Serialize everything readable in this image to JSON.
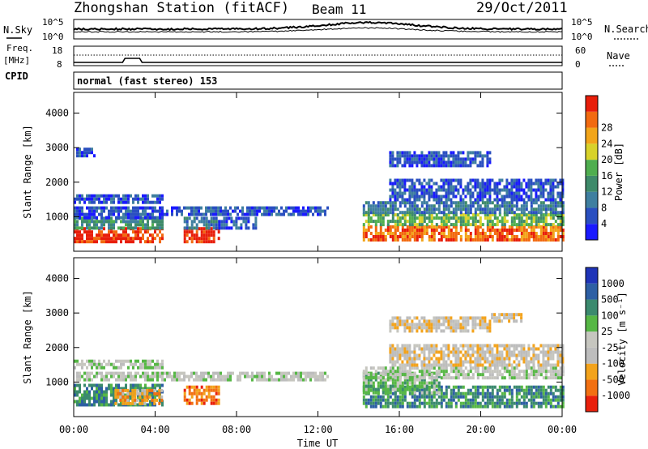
{
  "header": {
    "station": "Zhongshan Station (fitACF)",
    "beam": "Beam 11",
    "date": "29/Oct/2011"
  },
  "top_panels": {
    "nsky_label": "N.Sky",
    "nsky_ticks": [
      "10^5",
      "10^0"
    ],
    "nsearch_label": "N.Search",
    "nsearch_ticks": [
      "10^5",
      "10^0"
    ],
    "freq_label": "Freq.",
    "freq_unit": "[MHz]",
    "freq_ticks": [
      "18",
      "8"
    ],
    "nave_label": "Nave",
    "nave_ticks": [
      "60",
      "0"
    ],
    "cpid_label": "CPID",
    "cpid_text": "normal (fast stereo) 153"
  },
  "colors": {
    "power": [
      "#1a1aff",
      "#2a4fc0",
      "#3f7fa0",
      "#3e8a6a",
      "#4fae4f",
      "#d8d22a",
      "#f2a51a",
      "#f26a10",
      "#e81e0a"
    ],
    "velocity": [
      "#1f34b8",
      "#2d5fa4",
      "#3b8a6e",
      "#56b745",
      "#c6c6bf",
      "#bdbdbd",
      "#f3a31c",
      "#f27012",
      "#e9200c"
    ]
  },
  "chart_data": [
    {
      "type": "heatmap",
      "panel": "power",
      "ylabel": "Slant Range [km]",
      "y_ticks": [
        "1000",
        "2000",
        "3000",
        "4000"
      ],
      "ylim": [
        0,
        4600
      ],
      "xlim_hours": [
        0,
        24
      ],
      "colorbar_label": "Power [dB]",
      "colorbar_ticks": [
        "4",
        "8",
        "12",
        "16",
        "20",
        "24",
        "28"
      ],
      "regions": [
        {
          "t": [
            0.0,
            4.3
          ],
          "r": [
            300,
            700
          ],
          "level": 8
        },
        {
          "t": [
            0.0,
            4.3
          ],
          "r": [
            700,
            1000
          ],
          "level": 3
        },
        {
          "t": [
            0.0,
            4.3
          ],
          "r": [
            1000,
            1300
          ],
          "level": 1
        },
        {
          "t": [
            0.0,
            4.3
          ],
          "r": [
            1400,
            1650
          ],
          "level": 1
        },
        {
          "t": [
            5.4,
            7.1
          ],
          "r": [
            300,
            700
          ],
          "level": 8
        },
        {
          "t": [
            5.4,
            7.1
          ],
          "r": [
            700,
            1000
          ],
          "level": 2
        },
        {
          "t": [
            4.3,
            12.5
          ],
          "r": [
            1050,
            1300
          ],
          "level": 1
        },
        {
          "t": [
            7.1,
            9.0
          ],
          "r": [
            650,
            1000
          ],
          "level": 1
        },
        {
          "t": [
            14.2,
            24.0
          ],
          "r": [
            300,
            750
          ],
          "level": 7
        },
        {
          "t": [
            14.2,
            24.0
          ],
          "r": [
            750,
            1100
          ],
          "level": 4
        },
        {
          "t": [
            14.2,
            24.0
          ],
          "r": [
            1100,
            1450
          ],
          "level": 2
        },
        {
          "t": [
            15.5,
            24.0
          ],
          "r": [
            1500,
            2100
          ],
          "level": 1
        },
        {
          "t": [
            15.5,
            20.5
          ],
          "r": [
            2500,
            2900
          ],
          "level": 1
        },
        {
          "t": [
            0.0,
            1.0
          ],
          "r": [
            2800,
            3000
          ],
          "level": 1
        }
      ]
    },
    {
      "type": "heatmap",
      "panel": "velocity",
      "ylabel": "Slant Range [km]",
      "y_ticks": [
        "1000",
        "2000",
        "3000",
        "4000"
      ],
      "ylim": [
        0,
        4600
      ],
      "xlim_hours": [
        0,
        24
      ],
      "xlabel": "Time UT",
      "x_ticks": [
        "00:00",
        "04:00",
        "08:00",
        "12:00",
        "16:00",
        "20:00",
        "00:00"
      ],
      "colorbar_label": "Velocity [m s⁻¹]",
      "colorbar_ticks": [
        "1000",
        "500",
        "100",
        "25",
        "-25",
        "-100",
        "-500",
        "-1000"
      ],
      "regions": [
        {
          "t": [
            0.0,
            4.3
          ],
          "r": [
            350,
            950
          ],
          "level": 2
        },
        {
          "t": [
            2.0,
            4.3
          ],
          "r": [
            400,
            800
          ],
          "level": 6
        },
        {
          "t": [
            5.4,
            7.1
          ],
          "r": [
            400,
            900
          ],
          "level": 7
        },
        {
          "t": [
            0.0,
            12.5
          ],
          "r": [
            1050,
            1300
          ],
          "level": 4
        },
        {
          "t": [
            0.0,
            4.3
          ],
          "r": [
            1400,
            1650
          ],
          "level": 4
        },
        {
          "t": [
            14.2,
            24.0
          ],
          "r": [
            250,
            900
          ],
          "level": 2
        },
        {
          "t": [
            14.2,
            18.0
          ],
          "r": [
            700,
            1300
          ],
          "level": 3
        },
        {
          "t": [
            14.2,
            24.0
          ],
          "r": [
            1100,
            1450
          ],
          "level": 4
        },
        {
          "t": [
            15.5,
            24.0
          ],
          "r": [
            1500,
            2100
          ],
          "level": 5
        },
        {
          "t": [
            15.5,
            20.5
          ],
          "r": [
            2500,
            2900
          ],
          "level": 5
        },
        {
          "t": [
            20.5,
            22.0
          ],
          "r": [
            2800,
            3000
          ],
          "level": 5
        }
      ]
    }
  ]
}
